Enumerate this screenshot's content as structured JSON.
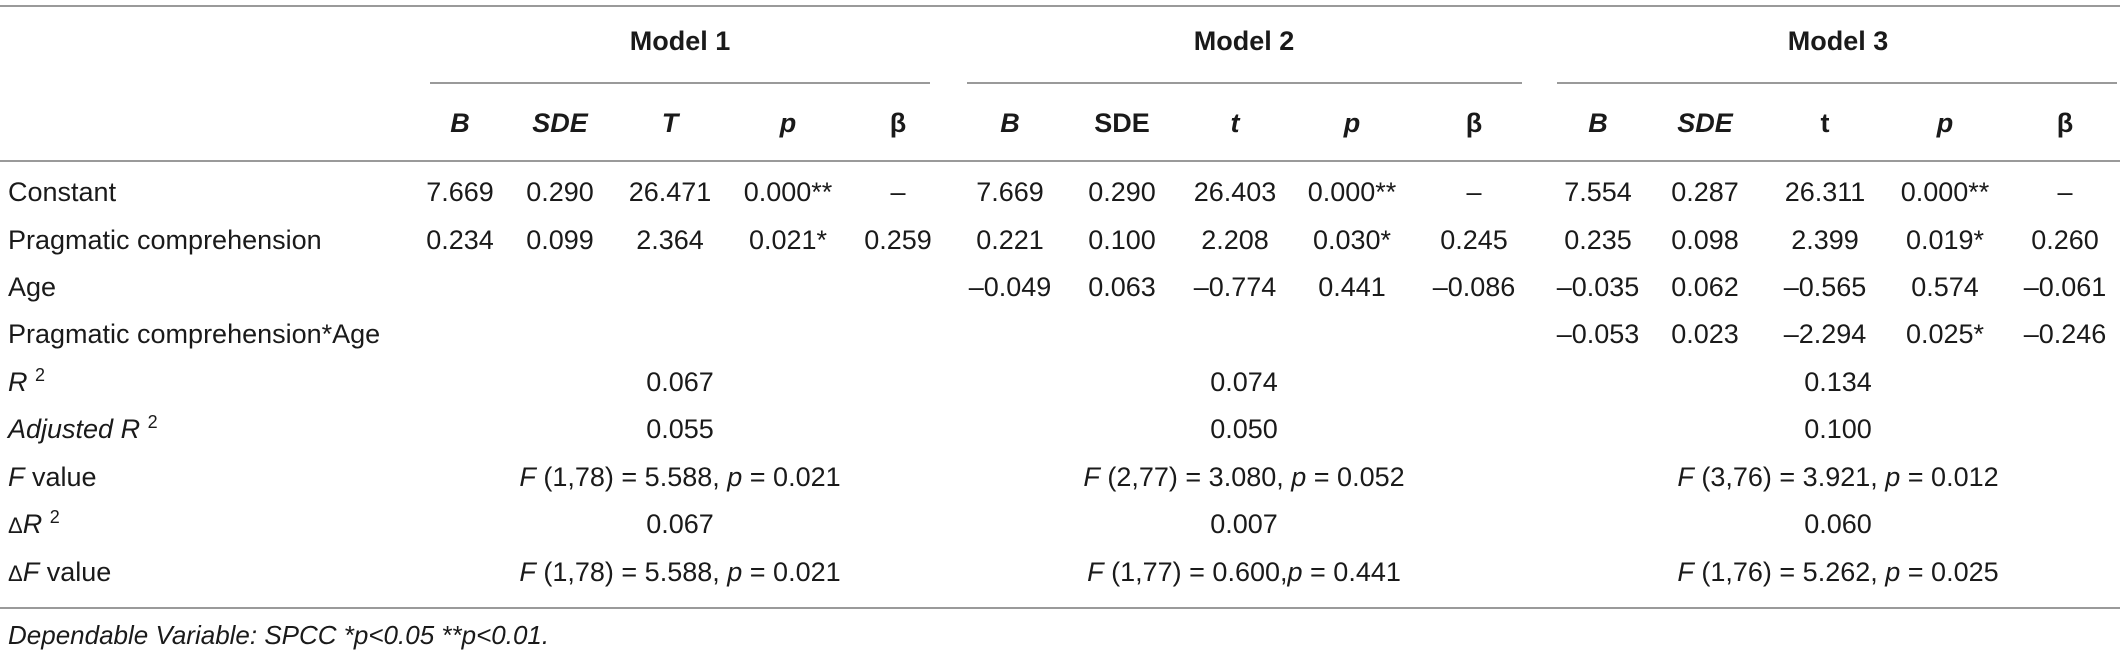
{
  "models": [
    "Model 1",
    "Model 2",
    "Model 3"
  ],
  "col_headers": [
    {
      "text": "B",
      "italic": true
    },
    {
      "text": "SDE",
      "italic": true
    },
    {
      "text": "T",
      "italic": true
    },
    {
      "text": "p",
      "italic": true
    },
    {
      "text": "β",
      "italic": false
    },
    {
      "text": "B",
      "italic": true
    },
    {
      "text": "SDE",
      "italic": false
    },
    {
      "text": "t",
      "italic": true
    },
    {
      "text": "p",
      "italic": true
    },
    {
      "text": "β",
      "italic": false
    },
    {
      "text": "B",
      "italic": true
    },
    {
      "text": "SDE",
      "italic": true
    },
    {
      "text": "t",
      "italic": false
    },
    {
      "text": "p",
      "italic": true
    },
    {
      "text": "β",
      "italic": false
    }
  ],
  "rows": [
    {
      "label": "Constant",
      "cells": [
        "7.669",
        "0.290",
        "26.471",
        "0.000**",
        "–",
        "7.669",
        "0.290",
        "26.403",
        "0.000**",
        "–",
        "7.554",
        "0.287",
        "26.311",
        "0.000**",
        "–"
      ]
    },
    {
      "label": "Pragmatic comprehension",
      "cells": [
        "0.234",
        "0.099",
        "2.364",
        "0.021*",
        "0.259",
        "0.221",
        "0.100",
        "2.208",
        "0.030*",
        "0.245",
        "0.235",
        "0.098",
        "2.399",
        "0.019*",
        "0.260"
      ]
    },
    {
      "label": "Age",
      "cells": [
        "",
        "",
        "",
        "",
        "",
        "–0.049",
        "0.063",
        "–0.774",
        "0.441",
        "–0.086",
        "–0.035",
        "0.062",
        "–0.565",
        "0.574",
        "–0.061"
      ]
    },
    {
      "label": "Pragmatic comprehension*Age",
      "cells": [
        "",
        "",
        "",
        "",
        "",
        "",
        "",
        "",
        "",
        "",
        "–0.053",
        "0.023",
        "–2.294",
        "0.025*",
        "–0.246"
      ]
    }
  ],
  "summary_rows": [
    {
      "label_main": "R",
      "label_sup": "2",
      "label_prefix": "",
      "label_italic": true,
      "values": [
        "0.067",
        "0.074",
        "0.134"
      ]
    },
    {
      "label_main": "Adjusted R",
      "label_sup": "2",
      "label_prefix": "",
      "label_italic": true,
      "values": [
        "0.055",
        "0.050",
        "0.100"
      ]
    },
    {
      "label_main": "F",
      "label_sup": "",
      "label_suffix": " value",
      "label_prefix": "",
      "label_italic": true,
      "values": [
        {
          "a": "F",
          "b": " (1,78) = 5.588, ",
          "c": "p",
          "d": " = 0.021"
        },
        {
          "a": "F",
          "b": " (2,77) = 3.080, ",
          "c": "p",
          "d": " = 0.052"
        },
        {
          "a": "F",
          "b": " (3,76) = 3.921, ",
          "c": "p",
          "d": " = 0.012"
        }
      ]
    },
    {
      "label_main": "R",
      "label_sup": "2",
      "label_prefix": "Δ",
      "label_italic": true,
      "values": [
        "0.067",
        "0.007",
        "0.060"
      ]
    },
    {
      "label_main": "F",
      "label_sup": "",
      "label_suffix": " value",
      "label_prefix": "Δ",
      "label_italic": true,
      "values": [
        {
          "a": "F",
          "b": " (1,78) = 5.588, ",
          "c": "p",
          "d": " = 0.021"
        },
        {
          "a": "F",
          "b": " (1,77) = 0.600,",
          "c": "p",
          "d": " = 0.441"
        },
        {
          "a": "F",
          "b": " (1,76) = 5.262, ",
          "c": "p",
          "d": " = 0.025"
        }
      ]
    }
  ],
  "footnote": "Dependable Variable: SPCC *p<0.05 **p<0.01."
}
